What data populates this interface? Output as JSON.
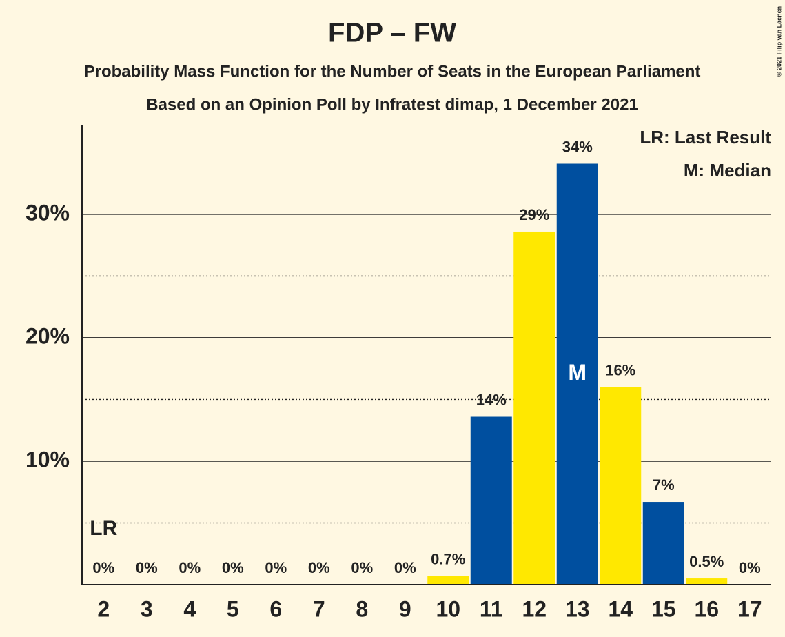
{
  "chart_data": {
    "type": "bar",
    "title": "FDP – FW",
    "subtitle": "Probability Mass Function for the Number of Seats in the European Parliament",
    "subtitle2": "Based on an Opinion Poll by Infratest dimap, 1 December 2021",
    "copyright": "© 2021 Filip van Laenen",
    "categories": [
      "2",
      "3",
      "4",
      "5",
      "6",
      "7",
      "8",
      "9",
      "10",
      "11",
      "12",
      "13",
      "14",
      "15",
      "16",
      "17"
    ],
    "values": [
      0,
      0,
      0,
      0,
      0,
      0,
      0,
      0,
      0.7,
      13.6,
      28.6,
      34.1,
      16.0,
      6.7,
      0.5,
      0
    ],
    "value_labels": [
      "0%",
      "0%",
      "0%",
      "0%",
      "0%",
      "0%",
      "0%",
      "0%",
      "0.7%",
      "14%",
      "29%",
      "34%",
      "16%",
      "7%",
      "0.5%",
      "0%"
    ],
    "colors": [
      "#ffe800",
      "#004f9f",
      "#ffe800",
      "#004f9f",
      "#ffe800",
      "#004f9f",
      "#ffe800",
      "#004f9f",
      "#ffe800",
      "#004f9f",
      "#ffe800",
      "#004f9f",
      "#ffe800",
      "#004f9f",
      "#ffe800",
      "#004f9f"
    ],
    "ylim": [
      0,
      37.2
    ],
    "yticks": [
      {
        "value": 10,
        "label": "10%"
      },
      {
        "value": 20,
        "label": "20%"
      },
      {
        "value": 30,
        "label": "30%"
      }
    ],
    "minor_gridlines": [
      5,
      15,
      25
    ],
    "grid": true,
    "markers": [
      {
        "label": "LR",
        "category": "2"
      },
      {
        "label": "M",
        "category": "13"
      }
    ],
    "legend": [
      "LR: Last Result",
      "M: Median"
    ],
    "legend_position": "top-right"
  }
}
